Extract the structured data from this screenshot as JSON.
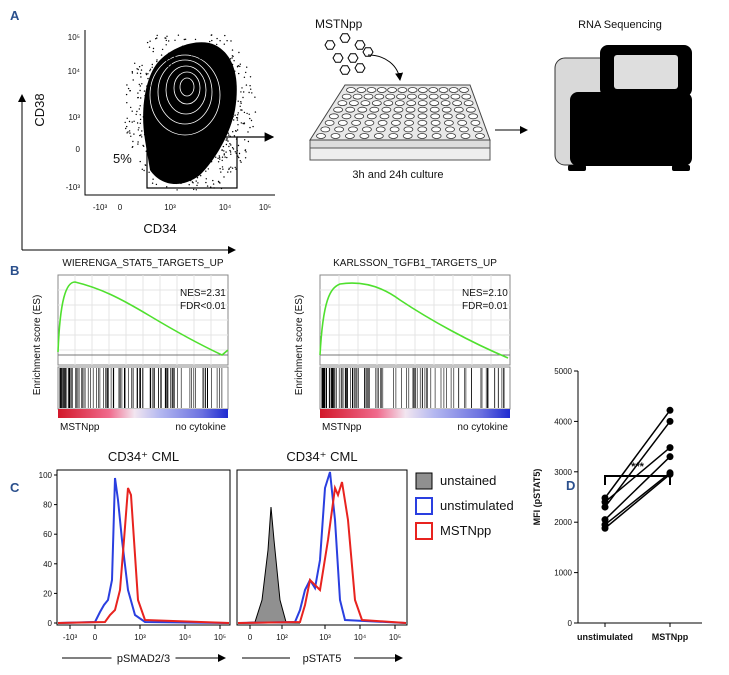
{
  "panel_labels": [
    "A",
    "B",
    "C",
    "D"
  ],
  "panel_a": {
    "y_axis_label": "CD38",
    "x_axis_label": "CD34",
    "yticks": [
      "10⁵",
      "10⁴",
      "10³",
      "0",
      "-10³"
    ],
    "xticks": [
      "-10³",
      "0",
      "10³",
      "10⁴",
      "10⁵"
    ],
    "gate_percent": "5%",
    "treatment": "MSTNpp",
    "culture": "3h and 24h culture",
    "sequencing": "RNA Sequencing"
  },
  "panel_b": {
    "y_axis_label": "Enrichment score (ES)",
    "left_label": "MSTNpp",
    "right_label": "no cytokine",
    "plots": [
      {
        "title": "WIERENGA_STAT5_TARGETS_UP",
        "nes": "NES=2.31",
        "fdr": "FDR<0.01"
      },
      {
        "title": "KARLSSON_TGFB1_TARGETS_UP",
        "nes": "NES=2.10",
        "fdr": "FDR=0.01"
      }
    ]
  },
  "panel_c": {
    "yticks": [
      "0",
      "20",
      "40",
      "60",
      "80",
      "100"
    ],
    "plots": [
      {
        "title": "CD34⁺  CML",
        "x_axis_label": "pSMAD2/3",
        "xticks": [
          "-10³",
          "0",
          "10³",
          "10⁴",
          "10⁵"
        ]
      },
      {
        "title": "CD34⁺  CML",
        "x_axis_label": "pSTAT5",
        "xticks": [
          "0",
          "10²",
          "10³",
          "10⁴",
          "10⁵"
        ]
      }
    ],
    "legend": [
      {
        "name": "unstained",
        "color": "#909090"
      },
      {
        "name": "unstimulated",
        "color": "#2a3fe0"
      },
      {
        "name": "MSTNpp",
        "color": "#e8231f"
      }
    ]
  },
  "chart_data": {
    "type": "line",
    "y_axis_label": "MFI (pSTAT5)",
    "categories": [
      "unstimulated",
      "MSTNpp"
    ],
    "series": [
      {
        "values": [
          2480,
          4220
        ],
        "color": "#000000"
      },
      {
        "values": [
          2400,
          3480
        ],
        "color": "#000000"
      },
      {
        "values": [
          2300,
          4000
        ],
        "color": "#000000"
      },
      {
        "values": [
          2050,
          3300
        ],
        "color": "#000000"
      },
      {
        "values": [
          1950,
          2980
        ],
        "color": "#000000"
      },
      {
        "values": [
          1880,
          2950
        ],
        "color": "#000000"
      }
    ],
    "ylim": [
      0,
      5000
    ],
    "yticks": [
      0,
      1000,
      2000,
      3000,
      4000,
      5000
    ],
    "significance": "***"
  }
}
